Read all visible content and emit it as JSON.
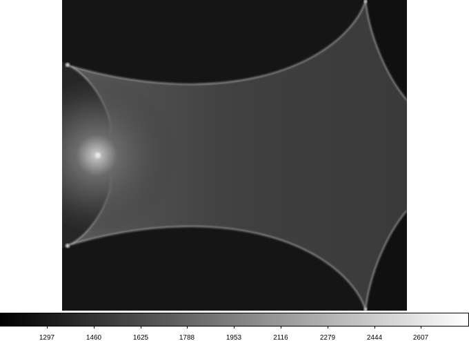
{
  "image": {
    "description_icon": "caustic-intensity-map",
    "colormap": "grayscale"
  },
  "colorbar": {
    "ticks": [
      "1297",
      "1460",
      "1625",
      "1788",
      "1953",
      "2116",
      "2279",
      "2444",
      "2607"
    ]
  }
}
